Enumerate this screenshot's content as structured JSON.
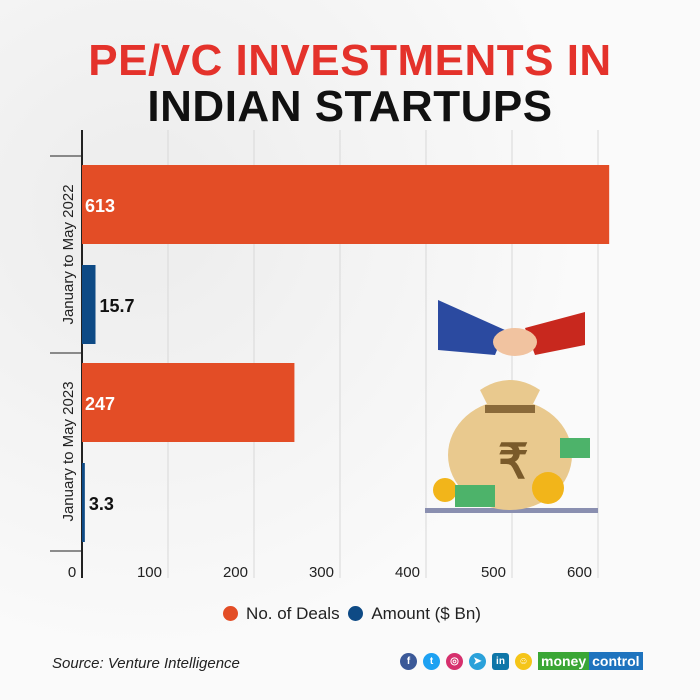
{
  "title_line1": "PE/VC INVESTMENTS IN",
  "title_line2": "INDIAN STARTUPS",
  "chart_data": {
    "type": "bar",
    "orientation": "horizontal",
    "categories": [
      "January to May 2022",
      "January to May 2023"
    ],
    "series": [
      {
        "name": "No. of Deals",
        "values": [
          613,
          247
        ],
        "color": "#e34d26"
      },
      {
        "name": "Amount ($ Bn)",
        "values": [
          15.7,
          3.3
        ],
        "color": "#0e4a85"
      }
    ],
    "xlim": [
      0,
      600
    ],
    "xticks": [
      0,
      100,
      200,
      300,
      400,
      500,
      600
    ],
    "grid": true,
    "legend": "bottom"
  },
  "source": "Source: Venture Intelligence",
  "social": [
    "facebook",
    "twitter",
    "instagram",
    "telegram",
    "linkedin",
    "snapchat"
  ],
  "brand": {
    "part1": "money",
    "part2": "control"
  }
}
